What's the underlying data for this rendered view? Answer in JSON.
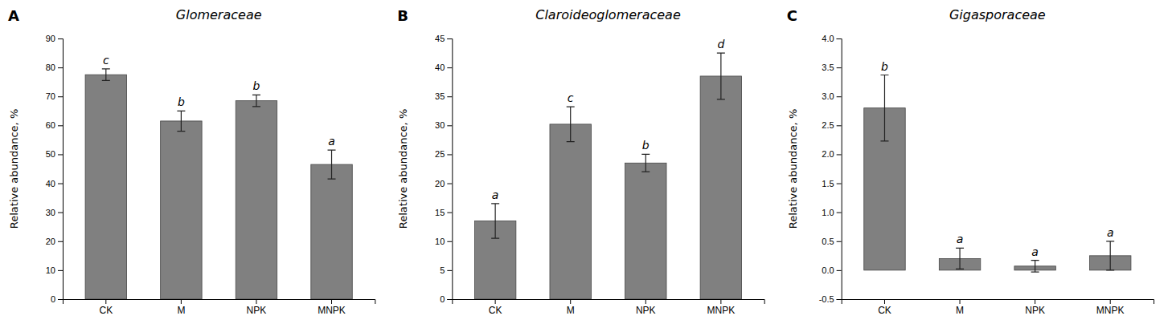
{
  "chart_data": [
    {
      "type": "bar",
      "label": "A",
      "title": "Glomeraceae",
      "ylabel": "Relative abundance, %",
      "categories": [
        "CK",
        "M",
        "NPK",
        "MNPK"
      ],
      "values": [
        77.5,
        61.5,
        68.5,
        46.5
      ],
      "errors": [
        2.0,
        3.5,
        2.0,
        5.0
      ],
      "annotations": [
        "c",
        "b",
        "b",
        "a"
      ],
      "color": "#808080",
      "ylim": [
        0,
        90
      ],
      "yticks": [
        0,
        10,
        20,
        30,
        40,
        50,
        60,
        70,
        80,
        90
      ],
      "grid": false
    },
    {
      "type": "bar",
      "label": "B",
      "title": "Claroideoglomeraceae",
      "ylabel": "Relative abundance, %",
      "categories": [
        "CK",
        "M",
        "NPK",
        "MNPK"
      ],
      "values": [
        13.5,
        30.2,
        23.5,
        38.5
      ],
      "errors": [
        3.0,
        3.0,
        1.5,
        4.0
      ],
      "annotations": [
        "a",
        "c",
        "b",
        "d"
      ],
      "color": "#808080",
      "ylim": [
        0,
        45
      ],
      "yticks": [
        0,
        5,
        10,
        15,
        20,
        25,
        30,
        35,
        40,
        45
      ],
      "grid": false
    },
    {
      "type": "bar",
      "label": "C",
      "title": "Gigasporaceae",
      "ylabel": "Relative abundance, %",
      "categories": [
        "CK",
        "M",
        "NPK",
        "MNPK"
      ],
      "values": [
        2.8,
        0.2,
        0.07,
        0.25
      ],
      "errors": [
        0.57,
        0.18,
        0.1,
        0.25
      ],
      "annotations": [
        "b",
        "a",
        "a",
        "a"
      ],
      "color": "#808080",
      "ylim": [
        -0.5,
        4.0
      ],
      "yticks": [
        -0.5,
        {
          "value": 0,
          "label": "0.0"
        },
        0.5,
        {
          "value": 1,
          "label": "1.0"
        },
        1.5,
        {
          "value": 2,
          "label": "2.0"
        },
        2.5,
        {
          "value": 3,
          "label": "3.0"
        },
        3.5,
        {
          "value": 4,
          "label": "4.0"
        }
      ],
      "grid": false
    }
  ]
}
